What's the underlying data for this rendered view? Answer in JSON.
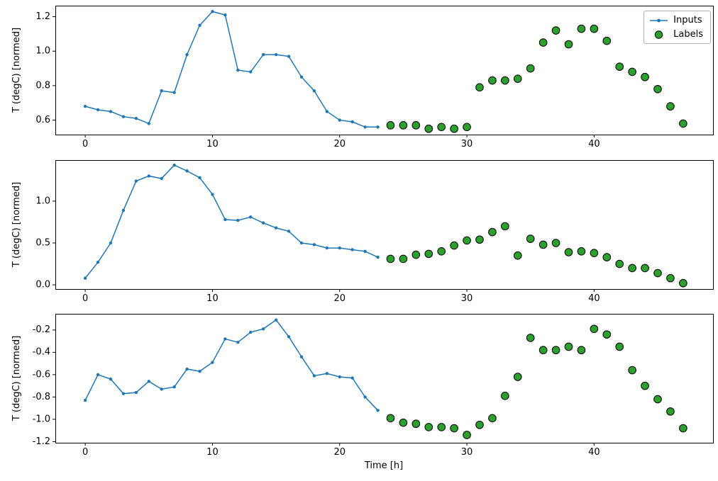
{
  "figure": {
    "background": "#ffffff",
    "colors": {
      "inputs": "#1f77b4",
      "labels": "#2ca02c",
      "edge": "#000000",
      "legend_border": "#b3b3b3"
    }
  },
  "chart_data": [
    {
      "type": "line",
      "title": "",
      "xlabel": "",
      "ylabel": "T (degC) [normed]",
      "xlim": [
        -2.35,
        49.35
      ],
      "ylim": [
        0.516,
        1.264
      ],
      "xticks": [
        0,
        10,
        20,
        30,
        40
      ],
      "yticks": [
        0.6,
        0.8,
        1.0,
        1.2
      ],
      "grid": false,
      "legend": true,
      "legend_position": "upper right",
      "series": [
        {
          "name": "Inputs",
          "type": "line",
          "color": "#1f77b4",
          "x": [
            0,
            1,
            2,
            3,
            4,
            5,
            6,
            7,
            8,
            9,
            10,
            11,
            12,
            13,
            14,
            15,
            16,
            17,
            18,
            19,
            20,
            21,
            22,
            23
          ],
          "y": [
            0.68,
            0.66,
            0.65,
            0.62,
            0.61,
            0.58,
            0.77,
            0.76,
            0.98,
            1.15,
            1.23,
            1.21,
            0.89,
            0.88,
            0.98,
            0.98,
            0.97,
            0.85,
            0.77,
            0.65,
            0.6,
            0.59,
            0.56,
            0.56
          ]
        },
        {
          "name": "Labels",
          "type": "scatter",
          "color": "#2ca02c",
          "x": [
            24,
            25,
            26,
            27,
            28,
            29,
            30,
            31,
            32,
            33,
            34,
            35,
            36,
            37,
            38,
            39,
            40,
            41,
            42,
            43,
            44,
            45,
            46,
            47
          ],
          "y": [
            0.57,
            0.57,
            0.57,
            0.55,
            0.56,
            0.55,
            0.56,
            0.79,
            0.83,
            0.83,
            0.84,
            0.9,
            1.05,
            1.12,
            1.04,
            1.13,
            1.13,
            1.06,
            0.91,
            0.88,
            0.85,
            0.78,
            0.68,
            0.58
          ]
        }
      ]
    },
    {
      "type": "line",
      "title": "",
      "xlabel": "",
      "ylabel": "T (degC) [normed]",
      "xlim": [
        -2.35,
        49.35
      ],
      "ylim": [
        -0.05,
        1.49
      ],
      "xticks": [
        0,
        10,
        20,
        30,
        40
      ],
      "yticks": [
        0.0,
        0.5,
        1.0
      ],
      "grid": false,
      "legend": false,
      "series": [
        {
          "name": "Inputs",
          "type": "line",
          "color": "#1f77b4",
          "x": [
            0,
            1,
            2,
            3,
            4,
            5,
            6,
            7,
            8,
            9,
            10,
            11,
            12,
            13,
            14,
            15,
            16,
            17,
            18,
            19,
            20,
            21,
            22,
            23
          ],
          "y": [
            0.08,
            0.27,
            0.5,
            0.89,
            1.24,
            1.3,
            1.27,
            1.43,
            1.36,
            1.28,
            1.08,
            0.78,
            0.77,
            0.81,
            0.74,
            0.68,
            0.64,
            0.5,
            0.48,
            0.44,
            0.44,
            0.42,
            0.4,
            0.33
          ]
        },
        {
          "name": "Labels",
          "type": "scatter",
          "color": "#2ca02c",
          "x": [
            24,
            25,
            26,
            27,
            28,
            29,
            30,
            31,
            32,
            33,
            34,
            35,
            36,
            37,
            38,
            39,
            40,
            41,
            42,
            43,
            44,
            45,
            46,
            47
          ],
          "y": [
            0.31,
            0.31,
            0.36,
            0.37,
            0.4,
            0.47,
            0.53,
            0.54,
            0.63,
            0.7,
            0.35,
            0.55,
            0.48,
            0.5,
            0.39,
            0.4,
            0.38,
            0.33,
            0.25,
            0.2,
            0.2,
            0.14,
            0.08,
            0.02
          ]
        }
      ]
    },
    {
      "type": "line",
      "title": "",
      "xlabel": "Time [h]",
      "ylabel": "T (degC) [normed]",
      "xlim": [
        -2.35,
        49.35
      ],
      "ylim": [
        -1.21,
        -0.055
      ],
      "xticks": [
        0,
        10,
        20,
        30,
        40
      ],
      "yticks": [
        -1.2,
        -1.0,
        -0.8,
        -0.6,
        -0.4,
        -0.2
      ],
      "grid": false,
      "legend": false,
      "series": [
        {
          "name": "Inputs",
          "type": "line",
          "color": "#1f77b4",
          "x": [
            0,
            1,
            2,
            3,
            4,
            5,
            6,
            7,
            8,
            9,
            10,
            11,
            12,
            13,
            14,
            15,
            16,
            17,
            18,
            19,
            20,
            21,
            22,
            23
          ],
          "y": [
            -0.83,
            -0.6,
            -0.64,
            -0.77,
            -0.76,
            -0.66,
            -0.73,
            -0.71,
            -0.55,
            -0.57,
            -0.49,
            -0.28,
            -0.31,
            -0.22,
            -0.19,
            -0.11,
            -0.26,
            -0.44,
            -0.61,
            -0.59,
            -0.62,
            -0.63,
            -0.8,
            -0.92
          ]
        },
        {
          "name": "Labels",
          "type": "scatter",
          "color": "#2ca02c",
          "x": [
            24,
            25,
            26,
            27,
            28,
            29,
            30,
            31,
            32,
            33,
            34,
            35,
            36,
            37,
            38,
            39,
            40,
            41,
            42,
            43,
            44,
            45,
            46,
            47
          ],
          "y": [
            -0.99,
            -1.03,
            -1.04,
            -1.07,
            -1.07,
            -1.08,
            -1.14,
            -1.05,
            -0.99,
            -0.79,
            -0.62,
            -0.27,
            -0.38,
            -0.38,
            -0.35,
            -0.38,
            -0.19,
            -0.24,
            -0.35,
            -0.56,
            -0.7,
            -0.82,
            -0.93,
            -1.08
          ]
        }
      ]
    }
  ]
}
